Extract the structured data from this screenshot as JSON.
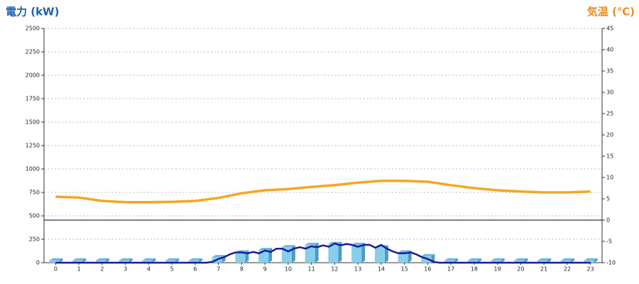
{
  "chart_data": {
    "type": "bar",
    "y_label": "電力 (kW)",
    "y2_label": "気温 (℃)",
    "categories": [
      "0",
      "1",
      "2",
      "3",
      "4",
      "5",
      "6",
      "7",
      "8",
      "9",
      "10",
      "11",
      "12",
      "13",
      "14",
      "15",
      "16",
      "17",
      "18",
      "19",
      "20",
      "21",
      "22",
      "23"
    ],
    "ylim": [
      0,
      2500
    ],
    "yticks": [
      0,
      250,
      500,
      750,
      1000,
      1250,
      1500,
      1750,
      2000,
      2250,
      2500
    ],
    "y2lim": [
      -10,
      45
    ],
    "y2ticks": [
      -10,
      -5,
      0,
      5,
      10,
      15,
      20,
      25,
      30,
      35,
      40,
      45
    ],
    "grid": true,
    "series": [
      {
        "type": "bar",
        "color": "#87ceeb",
        "values": [
          25,
          25,
          25,
          25,
          25,
          25,
          25,
          60,
          110,
          135,
          165,
          190,
          200,
          190,
          165,
          110,
          70,
          25,
          25,
          25,
          25,
          25,
          25,
          25
        ]
      },
      {
        "type": "line",
        "axis": "y2",
        "color": "#f5a623",
        "values": [
          5.5,
          5.3,
          4.5,
          4.2,
          4.2,
          4.3,
          4.5,
          5.2,
          6.3,
          7.0,
          7.3,
          7.8,
          8.2,
          8.8,
          9.2,
          9.2,
          9.0,
          8.2,
          7.5,
          7.0,
          6.7,
          6.5,
          6.5,
          6.7
        ]
      },
      {
        "type": "line",
        "color": "#1a1a9c",
        "x": [
          0,
          6.5,
          6.75,
          7,
          7.25,
          7.5,
          7.75,
          8,
          8.25,
          8.5,
          8.75,
          9,
          9.25,
          9.5,
          9.75,
          10,
          10.25,
          10.5,
          10.75,
          11,
          11.25,
          11.5,
          11.75,
          12,
          12.25,
          12.5,
          12.75,
          13,
          13.25,
          13.5,
          13.75,
          14,
          14.25,
          14.5,
          14.75,
          15,
          15.25,
          15.5,
          15.75,
          16,
          16.25,
          16.5,
          23
        ],
        "values": [
          0,
          0,
          10,
          40,
          60,
          90,
          110,
          110,
          100,
          115,
          100,
          130,
          115,
          150,
          150,
          120,
          150,
          165,
          150,
          175,
          165,
          185,
          170,
          205,
          185,
          200,
          190,
          170,
          190,
          190,
          160,
          190,
          150,
          120,
          100,
          100,
          110,
          90,
          60,
          40,
          10,
          0,
          0
        ]
      }
    ]
  }
}
